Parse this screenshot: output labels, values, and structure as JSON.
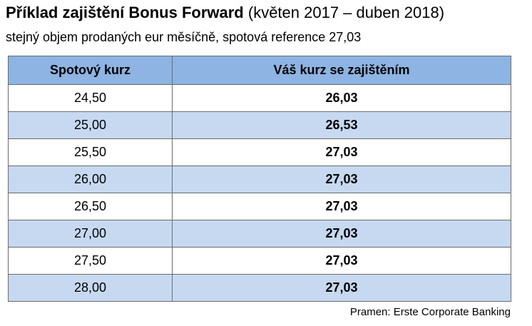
{
  "title": {
    "bold": "Příklad zajištění Bonus Forward",
    "rest": " (květen 2017 – duben 2018)"
  },
  "subtitle": "stejný objem prodaných eur měsíčně, spotová reference 27,03",
  "table": {
    "headers": [
      "Spotový kurz",
      "Váš kurz se zajištěním"
    ],
    "rows": [
      [
        "24,50",
        "26,03"
      ],
      [
        "25,00",
        "26,53"
      ],
      [
        "25,50",
        "27,03"
      ],
      [
        "26,00",
        "27,03"
      ],
      [
        "26,50",
        "27,03"
      ],
      [
        "27,00",
        "27,03"
      ],
      [
        "27,50",
        "27,03"
      ],
      [
        "28,00",
        "27,03"
      ]
    ]
  },
  "source": "Pramen: Erste Corporate Banking",
  "colors": {
    "header_bg": "#8db4e2",
    "alt_row_bg": "#c6d9f1",
    "row_bg": "#ffffff",
    "border": "#6b6b6b"
  }
}
